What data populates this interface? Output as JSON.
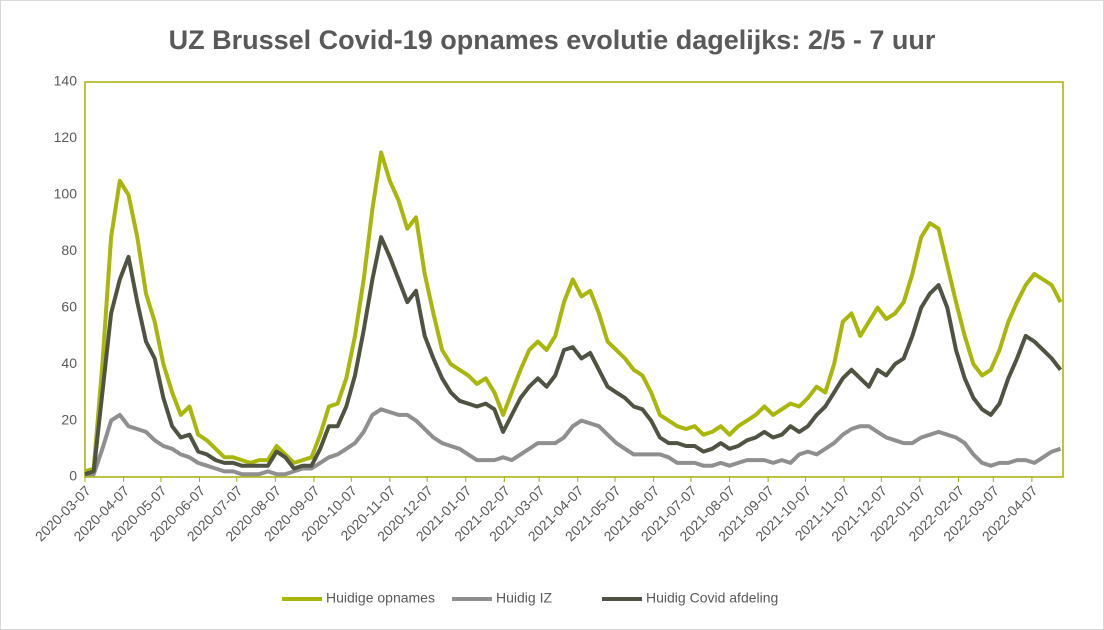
{
  "chart_data": {
    "type": "line",
    "title": "UZ Brussel Covid-19 opnames evolutie dagelijks: 2/5 - 7 uur",
    "x": [
      "2020-03-07",
      "2020-03-14",
      "2020-03-21",
      "2020-03-28",
      "2020-04-04",
      "2020-04-11",
      "2020-04-18",
      "2020-04-25",
      "2020-05-02",
      "2020-05-09",
      "2020-05-16",
      "2020-05-23",
      "2020-05-30",
      "2020-06-06",
      "2020-06-13",
      "2020-06-20",
      "2020-06-27",
      "2020-07-04",
      "2020-07-11",
      "2020-07-18",
      "2020-07-25",
      "2020-08-01",
      "2020-08-08",
      "2020-08-15",
      "2020-08-22",
      "2020-08-29",
      "2020-09-05",
      "2020-09-12",
      "2020-09-19",
      "2020-09-26",
      "2020-10-03",
      "2020-10-10",
      "2020-10-17",
      "2020-10-24",
      "2020-10-31",
      "2020-11-07",
      "2020-11-14",
      "2020-11-21",
      "2020-11-28",
      "2020-12-05",
      "2020-12-12",
      "2020-12-19",
      "2020-12-26",
      "2021-01-02",
      "2021-01-09",
      "2021-01-16",
      "2021-01-23",
      "2021-01-30",
      "2021-02-06",
      "2021-02-13",
      "2021-02-20",
      "2021-02-27",
      "2021-03-06",
      "2021-03-13",
      "2021-03-20",
      "2021-03-27",
      "2021-04-03",
      "2021-04-10",
      "2021-04-17",
      "2021-04-24",
      "2021-05-01",
      "2021-05-08",
      "2021-05-15",
      "2021-05-22",
      "2021-05-29",
      "2021-06-05",
      "2021-06-12",
      "2021-06-19",
      "2021-06-26",
      "2021-07-03",
      "2021-07-10",
      "2021-07-17",
      "2021-07-24",
      "2021-07-31",
      "2021-08-07",
      "2021-08-14",
      "2021-08-21",
      "2021-08-28",
      "2021-09-04",
      "2021-09-11",
      "2021-09-18",
      "2021-09-25",
      "2021-10-02",
      "2021-10-09",
      "2021-10-16",
      "2021-10-23",
      "2021-10-30",
      "2021-11-06",
      "2021-11-13",
      "2021-11-20",
      "2021-11-27",
      "2021-12-04",
      "2021-12-11",
      "2021-12-18",
      "2021-12-25",
      "2022-01-01",
      "2022-01-08",
      "2022-01-15",
      "2022-01-22",
      "2022-01-29",
      "2022-02-05",
      "2022-02-12",
      "2022-02-19",
      "2022-02-26",
      "2022-03-05",
      "2022-03-12",
      "2022-03-19",
      "2022-03-26",
      "2022-04-02",
      "2022-04-09",
      "2022-04-16",
      "2022-04-23",
      "2022-04-30"
    ],
    "series": [
      {
        "name": "Huidige opnames",
        "color": "#a9b60a",
        "values": [
          2,
          3,
          40,
          85,
          105,
          100,
          85,
          65,
          55,
          40,
          30,
          22,
          25,
          15,
          13,
          10,
          7,
          7,
          6,
          5,
          6,
          6,
          11,
          8,
          5,
          6,
          7,
          15,
          25,
          26,
          35,
          50,
          70,
          95,
          115,
          105,
          98,
          88,
          92,
          72,
          58,
          45,
          40,
          38,
          36,
          33,
          35,
          30,
          22,
          30,
          38,
          45,
          48,
          45,
          50,
          62,
          70,
          64,
          66,
          58,
          48,
          45,
          42,
          38,
          36,
          30,
          22,
          20,
          18,
          17,
          18,
          15,
          16,
          18,
          15,
          18,
          20,
          22,
          25,
          22,
          24,
          26,
          25,
          28,
          32,
          30,
          40,
          55,
          58,
          50,
          55,
          60,
          56,
          58,
          62,
          72,
          85,
          90,
          88,
          75,
          62,
          50,
          40,
          36,
          38,
          45,
          55,
          62,
          68,
          72,
          70,
          68,
          62
        ]
      },
      {
        "name": "Huidig IZ",
        "color": "#8f8f8f",
        "values": [
          1,
          1,
          10,
          20,
          22,
          18,
          17,
          16,
          13,
          11,
          10,
          8,
          7,
          5,
          4,
          3,
          2,
          2,
          1,
          1,
          1,
          2,
          1,
          1,
          2,
          3,
          3,
          5,
          7,
          8,
          10,
          12,
          16,
          22,
          24,
          23,
          22,
          22,
          20,
          17,
          14,
          12,
          11,
          10,
          8,
          6,
          6,
          6,
          7,
          6,
          8,
          10,
          12,
          12,
          12,
          14,
          18,
          20,
          19,
          18,
          15,
          12,
          10,
          8,
          8,
          8,
          8,
          7,
          5,
          5,
          5,
          4,
          4,
          5,
          4,
          5,
          6,
          6,
          6,
          5,
          6,
          5,
          8,
          9,
          8,
          10,
          12,
          15,
          17,
          18,
          18,
          16,
          14,
          13,
          12,
          12,
          14,
          15,
          16,
          15,
          14,
          12,
          8,
          5,
          4,
          5,
          5,
          6,
          6,
          5,
          7,
          9,
          10
        ]
      },
      {
        "name": "Huidig Covid afdeling",
        "color": "#4f5442",
        "values": [
          1,
          2,
          30,
          58,
          70,
          78,
          62,
          48,
          42,
          28,
          18,
          14,
          15,
          9,
          8,
          6,
          5,
          5,
          4,
          4,
          4,
          4,
          9,
          7,
          3,
          4,
          4,
          10,
          18,
          18,
          25,
          36,
          52,
          70,
          85,
          78,
          70,
          62,
          66,
          50,
          42,
          35,
          30,
          27,
          26,
          25,
          26,
          24,
          16,
          22,
          28,
          32,
          35,
          32,
          36,
          45,
          46,
          42,
          44,
          38,
          32,
          30,
          28,
          25,
          24,
          20,
          14,
          12,
          12,
          11,
          11,
          9,
          10,
          12,
          10,
          11,
          13,
          14,
          16,
          14,
          15,
          18,
          16,
          18,
          22,
          25,
          30,
          35,
          38,
          35,
          32,
          38,
          36,
          40,
          42,
          50,
          60,
          65,
          68,
          60,
          45,
          35,
          28,
          24,
          22,
          26,
          35,
          42,
          50,
          48,
          45,
          42,
          38
        ]
      }
    ],
    "xlim": [
      "2020-03-07",
      "2022-05-02"
    ],
    "xticks": [
      "2020-03-07",
      "2020-04-07",
      "2020-05-07",
      "2020-06-07",
      "2020-07-07",
      "2020-08-07",
      "2020-09-07",
      "2020-10-07",
      "2020-11-07",
      "2020-12-07",
      "2021-01-07",
      "2021-02-07",
      "2021-03-07",
      "2021-04-07",
      "2021-05-07",
      "2021-06-07",
      "2021-07-07",
      "2021-08-07",
      "2021-09-07",
      "2021-10-07",
      "2021-11-07",
      "2021-12-07",
      "2022-01-07",
      "2022-02-07",
      "2022-03-07",
      "2022-04-07"
    ],
    "ylim": [
      0,
      140
    ],
    "yticks": [
      0,
      20,
      40,
      60,
      80,
      100,
      120,
      140
    ],
    "grid": false,
    "legend": "bottom"
  }
}
